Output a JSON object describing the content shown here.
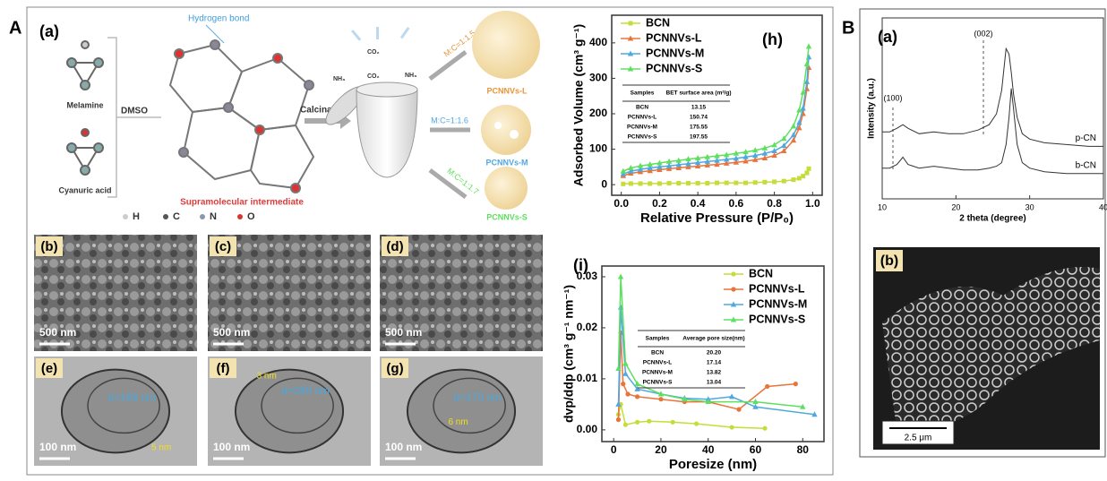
{
  "figure_a": {
    "label": "A",
    "diagram": {
      "label": "(a)",
      "hydrogen_bond": "Hydrogen bond",
      "melamine": "Melamine",
      "cyanuric_acid": "Cyanuric acid",
      "solvent": "DMSO",
      "step": "Calcination",
      "intermediate": "Supramolecular intermediate",
      "gases": [
        "NH₃",
        "CO₂",
        "NH₃",
        "CO₂"
      ],
      "ratios": [
        "M:C=1:1.5",
        "M:C=1:1.6",
        "M:C=1:1.7"
      ],
      "products": [
        "PCNNVs-L",
        "PCNNVs-M",
        "PCNNVs-S"
      ],
      "atoms": [
        "H",
        "C",
        "N",
        "O"
      ]
    },
    "micrographs": [
      {
        "label": "(b)",
        "scale": "500 nm"
      },
      {
        "label": "(c)",
        "scale": "500 nm"
      },
      {
        "label": "(d)",
        "scale": "500 nm"
      },
      {
        "label": "(e)",
        "scale": "100 nm",
        "annotations": [
          "d=188 nm",
          "5 nm"
        ]
      },
      {
        "label": "(f)",
        "scale": "100 nm",
        "annotations": [
          "d=280 nm",
          "3 nm"
        ]
      },
      {
        "label": "(g)",
        "scale": "100 nm",
        "annotations": [
          "d=170 nm",
          "6 nm"
        ]
      }
    ]
  },
  "figure_b": {
    "label": "B",
    "micrograph": {
      "label": "(b)",
      "scale": "2.5 μm"
    }
  },
  "chart_data": [
    {
      "type": "line",
      "title": "(h)",
      "xlabel": "Relative Pressure (P/P₀)",
      "ylabel": "Adsorbed Volume (cm³ g⁻¹)",
      "xlim": [
        -0.05,
        1.05
      ],
      "ylim": [
        -30,
        478
      ],
      "xticks": [
        {
          "value": 0,
          "label": "0.0"
        },
        0.2,
        0.4,
        0.6,
        0.8,
        {
          "value": 1,
          "label": "1.0"
        }
      ],
      "yticks": [
        0,
        100,
        200,
        300,
        400
      ],
      "legend": "upper left",
      "x": [
        0.01,
        0.05,
        0.1,
        0.15,
        0.2,
        0.25,
        0.3,
        0.35,
        0.4,
        0.45,
        0.5,
        0.55,
        0.6,
        0.65,
        0.7,
        0.75,
        0.8,
        0.85,
        0.9,
        0.93,
        0.95,
        0.97,
        0.98
      ],
      "series": [
        {
          "name": "BCN",
          "color": "#c6dc3a",
          "marker": "square",
          "values": [
            2,
            3,
            3,
            3,
            3,
            4,
            4,
            4,
            4,
            4,
            5,
            5,
            5,
            5,
            6,
            7,
            8,
            10,
            14,
            18,
            24,
            33,
            45
          ]
        },
        {
          "name": "PCNNVs-L",
          "color": "#e8743b",
          "marker": "triangle",
          "values": [
            25,
            32,
            36,
            39,
            42,
            45,
            47,
            50,
            52,
            55,
            57,
            60,
            63,
            66,
            70,
            75,
            82,
            95,
            125,
            160,
            200,
            270,
            330
          ]
        },
        {
          "name": "PCNNVs-M",
          "color": "#4fa8e0",
          "marker": "triangle",
          "values": [
            30,
            38,
            43,
            47,
            50,
            53,
            56,
            59,
            62,
            65,
            68,
            71,
            74,
            78,
            82,
            88,
            95,
            110,
            140,
            175,
            215,
            290,
            360
          ]
        },
        {
          "name": "PCNNVs-S",
          "color": "#5ee05e",
          "marker": "triangle",
          "values": [
            38,
            47,
            53,
            57,
            61,
            65,
            68,
            72,
            75,
            78,
            81,
            84,
            88,
            92,
            97,
            103,
            112,
            130,
            165,
            210,
            260,
            340,
            390
          ]
        }
      ],
      "table": {
        "header": [
          "Samples",
          "BET surface area (m²/g)"
        ],
        "rows": [
          [
            "BCN",
            "13.15"
          ],
          [
            "PCNNVs-L",
            "150.74"
          ],
          [
            "PCNNVs-M",
            "175.55"
          ],
          [
            "PCNNVs-S",
            "197.55"
          ]
        ]
      }
    },
    {
      "type": "line",
      "title": "(i)",
      "xlabel": "Poresize (nm)",
      "ylabel": "dvp/ddp (cm³ g⁻¹ nm⁻¹)",
      "xlim": [
        -5,
        89
      ],
      "ylim": [
        -0.0023,
        0.0321
      ],
      "xticks": [
        0,
        20,
        40,
        60,
        80
      ],
      "yticks": [
        {
          "value": 0,
          "label": "0.00"
        },
        0.01,
        0.02,
        0.03
      ],
      "legend": "upper right",
      "series": [
        {
          "name": "BCN",
          "color": "#c6dc3a",
          "marker": "circle",
          "x": [
            2,
            3,
            5,
            10,
            15,
            25,
            35,
            50,
            64
          ],
          "values": [
            0.003,
            0.005,
            0.001,
            0.0015,
            0.0017,
            0.0015,
            0.0012,
            0.0005,
            0.0003
          ]
        },
        {
          "name": "PCNNVs-L",
          "color": "#e8743b",
          "marker": "circle",
          "x": [
            2,
            3,
            4,
            6,
            10,
            20,
            30,
            40,
            53,
            65,
            77
          ],
          "values": [
            0.002,
            0.019,
            0.009,
            0.007,
            0.0065,
            0.006,
            0.0055,
            0.0055,
            0.004,
            0.0085,
            0.009
          ]
        },
        {
          "name": "PCNNVs-M",
          "color": "#4fa8e0",
          "marker": "triangle",
          "x": [
            2,
            3,
            5,
            10,
            20,
            30,
            40,
            50,
            60,
            85
          ],
          "values": [
            0.005,
            0.024,
            0.011,
            0.008,
            0.007,
            0.0062,
            0.006,
            0.0065,
            0.0045,
            0.003
          ]
        },
        {
          "name": "PCNNVs-S",
          "color": "#5ee05e",
          "marker": "triangle",
          "x": [
            2,
            3,
            5,
            10,
            20,
            30,
            40,
            60,
            80
          ],
          "values": [
            0.012,
            0.03,
            0.013,
            0.009,
            0.007,
            0.006,
            0.0055,
            0.0055,
            0.0045
          ]
        }
      ],
      "table": {
        "header": [
          "Samples",
          "Average pore size(nm)"
        ],
        "rows": [
          [
            "BCN",
            "20.20"
          ],
          [
            "PCNNVs-L",
            "17.14"
          ],
          [
            "PCNNVs-M",
            "13.82"
          ],
          [
            "PCNNVs-S",
            "13.04"
          ]
        ]
      }
    },
    {
      "type": "line",
      "title": "(a)",
      "xlabel": "2 theta (degree)",
      "ylabel": "Intensity (a.u.)",
      "annotations": [
        "(100)",
        "(002)"
      ],
      "xlim": [
        10,
        40
      ],
      "ylim": [
        0,
        100
      ],
      "xticks": [
        10,
        20,
        30,
        40
      ],
      "x": [
        10,
        11,
        12,
        12.8,
        13.5,
        15,
        17,
        19,
        21,
        23,
        24.5,
        25.5,
        26.2,
        26.8,
        27.2,
        27.5,
        27.8,
        28.3,
        29,
        30,
        32,
        35,
        38,
        40
      ],
      "series": [
        {
          "name": "p-CN",
          "color": "#333333",
          "values": [
            37,
            37,
            39,
            41,
            39,
            36,
            37,
            36,
            36,
            38,
            41,
            47,
            60,
            83,
            80,
            70,
            58,
            45,
            36,
            33,
            31,
            30,
            29,
            29
          ]
        },
        {
          "name": "b-CN",
          "color": "#333333",
          "values": [
            17,
            17,
            19,
            23,
            19,
            17,
            18,
            17,
            16,
            16,
            17,
            18,
            20,
            30,
            45,
            61,
            50,
            30,
            20,
            17,
            15,
            14,
            14,
            14
          ]
        }
      ]
    }
  ]
}
